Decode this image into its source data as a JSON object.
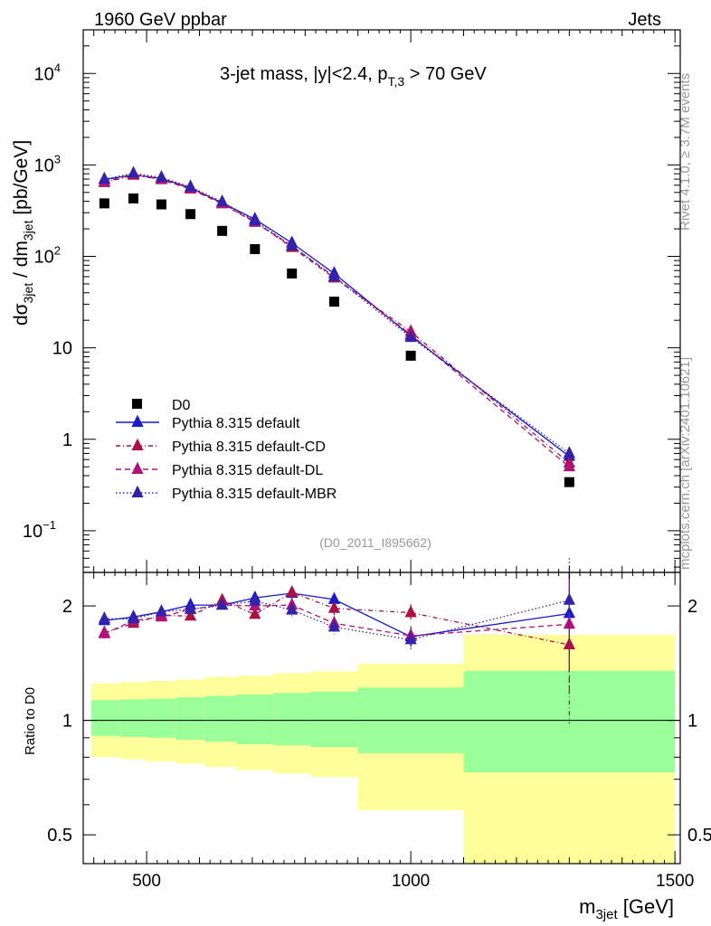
{
  "header": {
    "left": "1960 GeV ppbar",
    "right": "Jets"
  },
  "side_labels": {
    "top": "Rivet 4.1.0, ≥ 3.7M events",
    "bottom": "mcplots.cern.ch [arXiv:2401.10621]"
  },
  "plot_title": {
    "main": "3-jet mass, |y|<2.4, p",
    "sub": "T,3",
    "tail": " > 70 GeV"
  },
  "analysis_id": "(D0_2011_I895662)",
  "axes": {
    "ylabel_main": "dσ",
    "ylabel_sub1": "3jet",
    "ylabel_mid": " / dm",
    "ylabel_sub2": "3jet",
    "ylabel_unit": " [pb/GeV]",
    "xlabel_main": "m",
    "xlabel_sub": "3jet",
    "xlabel_unit": " [GeV]",
    "ratio_ylabel": "Ratio to D0"
  },
  "colors": {
    "data": "#000000",
    "default": "#1a1acc",
    "cd": "#aa1144",
    "dl": "#b0127a",
    "mbr": "#3322aa",
    "band_inner": "#99ff99",
    "band_outer": "#ffff99"
  },
  "chart_data": {
    "type": "line",
    "x": [
      420,
      475,
      528,
      583,
      643,
      705,
      775,
      855,
      1000,
      1300
    ],
    "xlim": [
      380,
      1510
    ],
    "ylim_main": [
      0.035,
      30000
    ],
    "ylim_ratio": [
      0.42,
      2.45
    ],
    "x_ticks": [
      {
        "value": 500,
        "label": "500"
      },
      {
        "value": 1000,
        "label": "1000"
      },
      {
        "value": 1500,
        "label": "1500"
      }
    ],
    "y_ticks_main": [
      {
        "value": 10000,
        "label": "10",
        "exp": "4"
      },
      {
        "value": 1000,
        "label": "10",
        "exp": "3"
      },
      {
        "value": 100,
        "label": "10",
        "exp": "2"
      },
      {
        "value": 10,
        "label": "10",
        "exp": ""
      },
      {
        "value": 1,
        "label": "1",
        "exp": ""
      },
      {
        "value": 0.1,
        "label": "10",
        "exp": "−1"
      }
    ],
    "y_ticks_ratio": [
      {
        "value": 0.5,
        "label": "0.5"
      },
      {
        "value": 1,
        "label": "1"
      },
      {
        "value": 2,
        "label": "2"
      }
    ],
    "data_points": [
      380,
      430,
      370,
      290,
      190,
      120,
      65,
      32,
      8.2,
      0.34
    ],
    "bins": [
      {
        "lo": 395,
        "hi": 450,
        "inner_lo": 0.91,
        "inner_hi": 1.13,
        "outer_lo": 0.8,
        "outer_hi": 1.25
      },
      {
        "lo": 450,
        "hi": 500,
        "inner_lo": 0.905,
        "inner_hi": 1.135,
        "outer_lo": 0.79,
        "outer_hi": 1.26
      },
      {
        "lo": 500,
        "hi": 555,
        "inner_lo": 0.9,
        "inner_hi": 1.14,
        "outer_lo": 0.78,
        "outer_hi": 1.27
      },
      {
        "lo": 555,
        "hi": 610,
        "inner_lo": 0.89,
        "inner_hi": 1.15,
        "outer_lo": 0.77,
        "outer_hi": 1.28
      },
      {
        "lo": 610,
        "hi": 670,
        "inner_lo": 0.88,
        "inner_hi": 1.16,
        "outer_lo": 0.755,
        "outer_hi": 1.3
      },
      {
        "lo": 670,
        "hi": 740,
        "inner_lo": 0.865,
        "inner_hi": 1.17,
        "outer_lo": 0.74,
        "outer_hi": 1.31
      },
      {
        "lo": 740,
        "hi": 810,
        "inner_lo": 0.86,
        "inner_hi": 1.18,
        "outer_lo": 0.725,
        "outer_hi": 1.33
      },
      {
        "lo": 810,
        "hi": 900,
        "inner_lo": 0.85,
        "inner_hi": 1.19,
        "outer_lo": 0.71,
        "outer_hi": 1.345
      },
      {
        "lo": 900,
        "hi": 1100,
        "inner_lo": 0.82,
        "inner_hi": 1.22,
        "outer_lo": 0.58,
        "outer_hi": 1.41
      },
      {
        "lo": 1100,
        "hi": 1500,
        "inner_lo": 0.73,
        "inner_hi": 1.35,
        "outer_lo": 0.3,
        "outer_hi": 1.68
      }
    ],
    "series": [
      {
        "key": "default",
        "name": "Pythia 8.315 default",
        "values": [
          690,
          780,
          710,
          560,
          385,
          255,
          140,
          65,
          13.5,
          0.65
        ],
        "ratio": [
          1.83,
          1.87,
          1.93,
          2.01,
          2.01,
          2.1,
          2.16,
          2.08,
          1.66,
          1.91
        ],
        "ratio_err": [
          0.05,
          0.04,
          0.04,
          0.05,
          0.05,
          0.06,
          0.07,
          0.08,
          0.1,
          0.55
        ],
        "color": "#1a1acc",
        "dash": ""
      },
      {
        "key": "cd",
        "name": "Pythia 8.315 default-CD",
        "values": [
          640,
          770,
          700,
          555,
          380,
          240,
          125,
          58,
          15,
          0.55
        ],
        "ratio": [
          1.7,
          1.8,
          1.89,
          1.88,
          2.07,
          1.9,
          2.17,
          1.97,
          1.92,
          1.58
        ],
        "ratio_err": [
          0.05,
          0.05,
          0.04,
          0.05,
          0.05,
          0.06,
          0.07,
          0.08,
          0.1,
          0.6
        ],
        "color": "#aa1144",
        "dash": "5,3,1,3"
      },
      {
        "key": "dl",
        "name": "Pythia 8.315 default-DL",
        "values": [
          650,
          790,
          690,
          545,
          375,
          235,
          130,
          60,
          14,
          0.5
        ],
        "ratio": [
          1.69,
          1.83,
          1.87,
          1.96,
          2.01,
          2.0,
          2.01,
          1.8,
          1.67,
          1.79
        ],
        "ratio_err": [
          0.05,
          0.05,
          0.04,
          0.05,
          0.05,
          0.06,
          0.07,
          0.08,
          0.1,
          0.6
        ],
        "color": "#b0127a",
        "dash": "6,4"
      },
      {
        "key": "mbr",
        "name": "Pythia 8.315 default-MBR",
        "values": [
          700,
          810,
          730,
          575,
          395,
          245,
          130,
          60,
          13,
          0.7
        ],
        "ratio": [
          1.85,
          1.85,
          1.93,
          1.96,
          2.01,
          2.06,
          1.95,
          1.76,
          1.63,
          2.07
        ],
        "ratio_err": [
          0.05,
          0.04,
          0.04,
          0.05,
          0.05,
          0.06,
          0.07,
          0.08,
          0.1,
          0.6
        ],
        "color": "#3322aa",
        "dash": "1.5,2.5"
      }
    ]
  },
  "legend": {
    "data_label": "D0"
  }
}
